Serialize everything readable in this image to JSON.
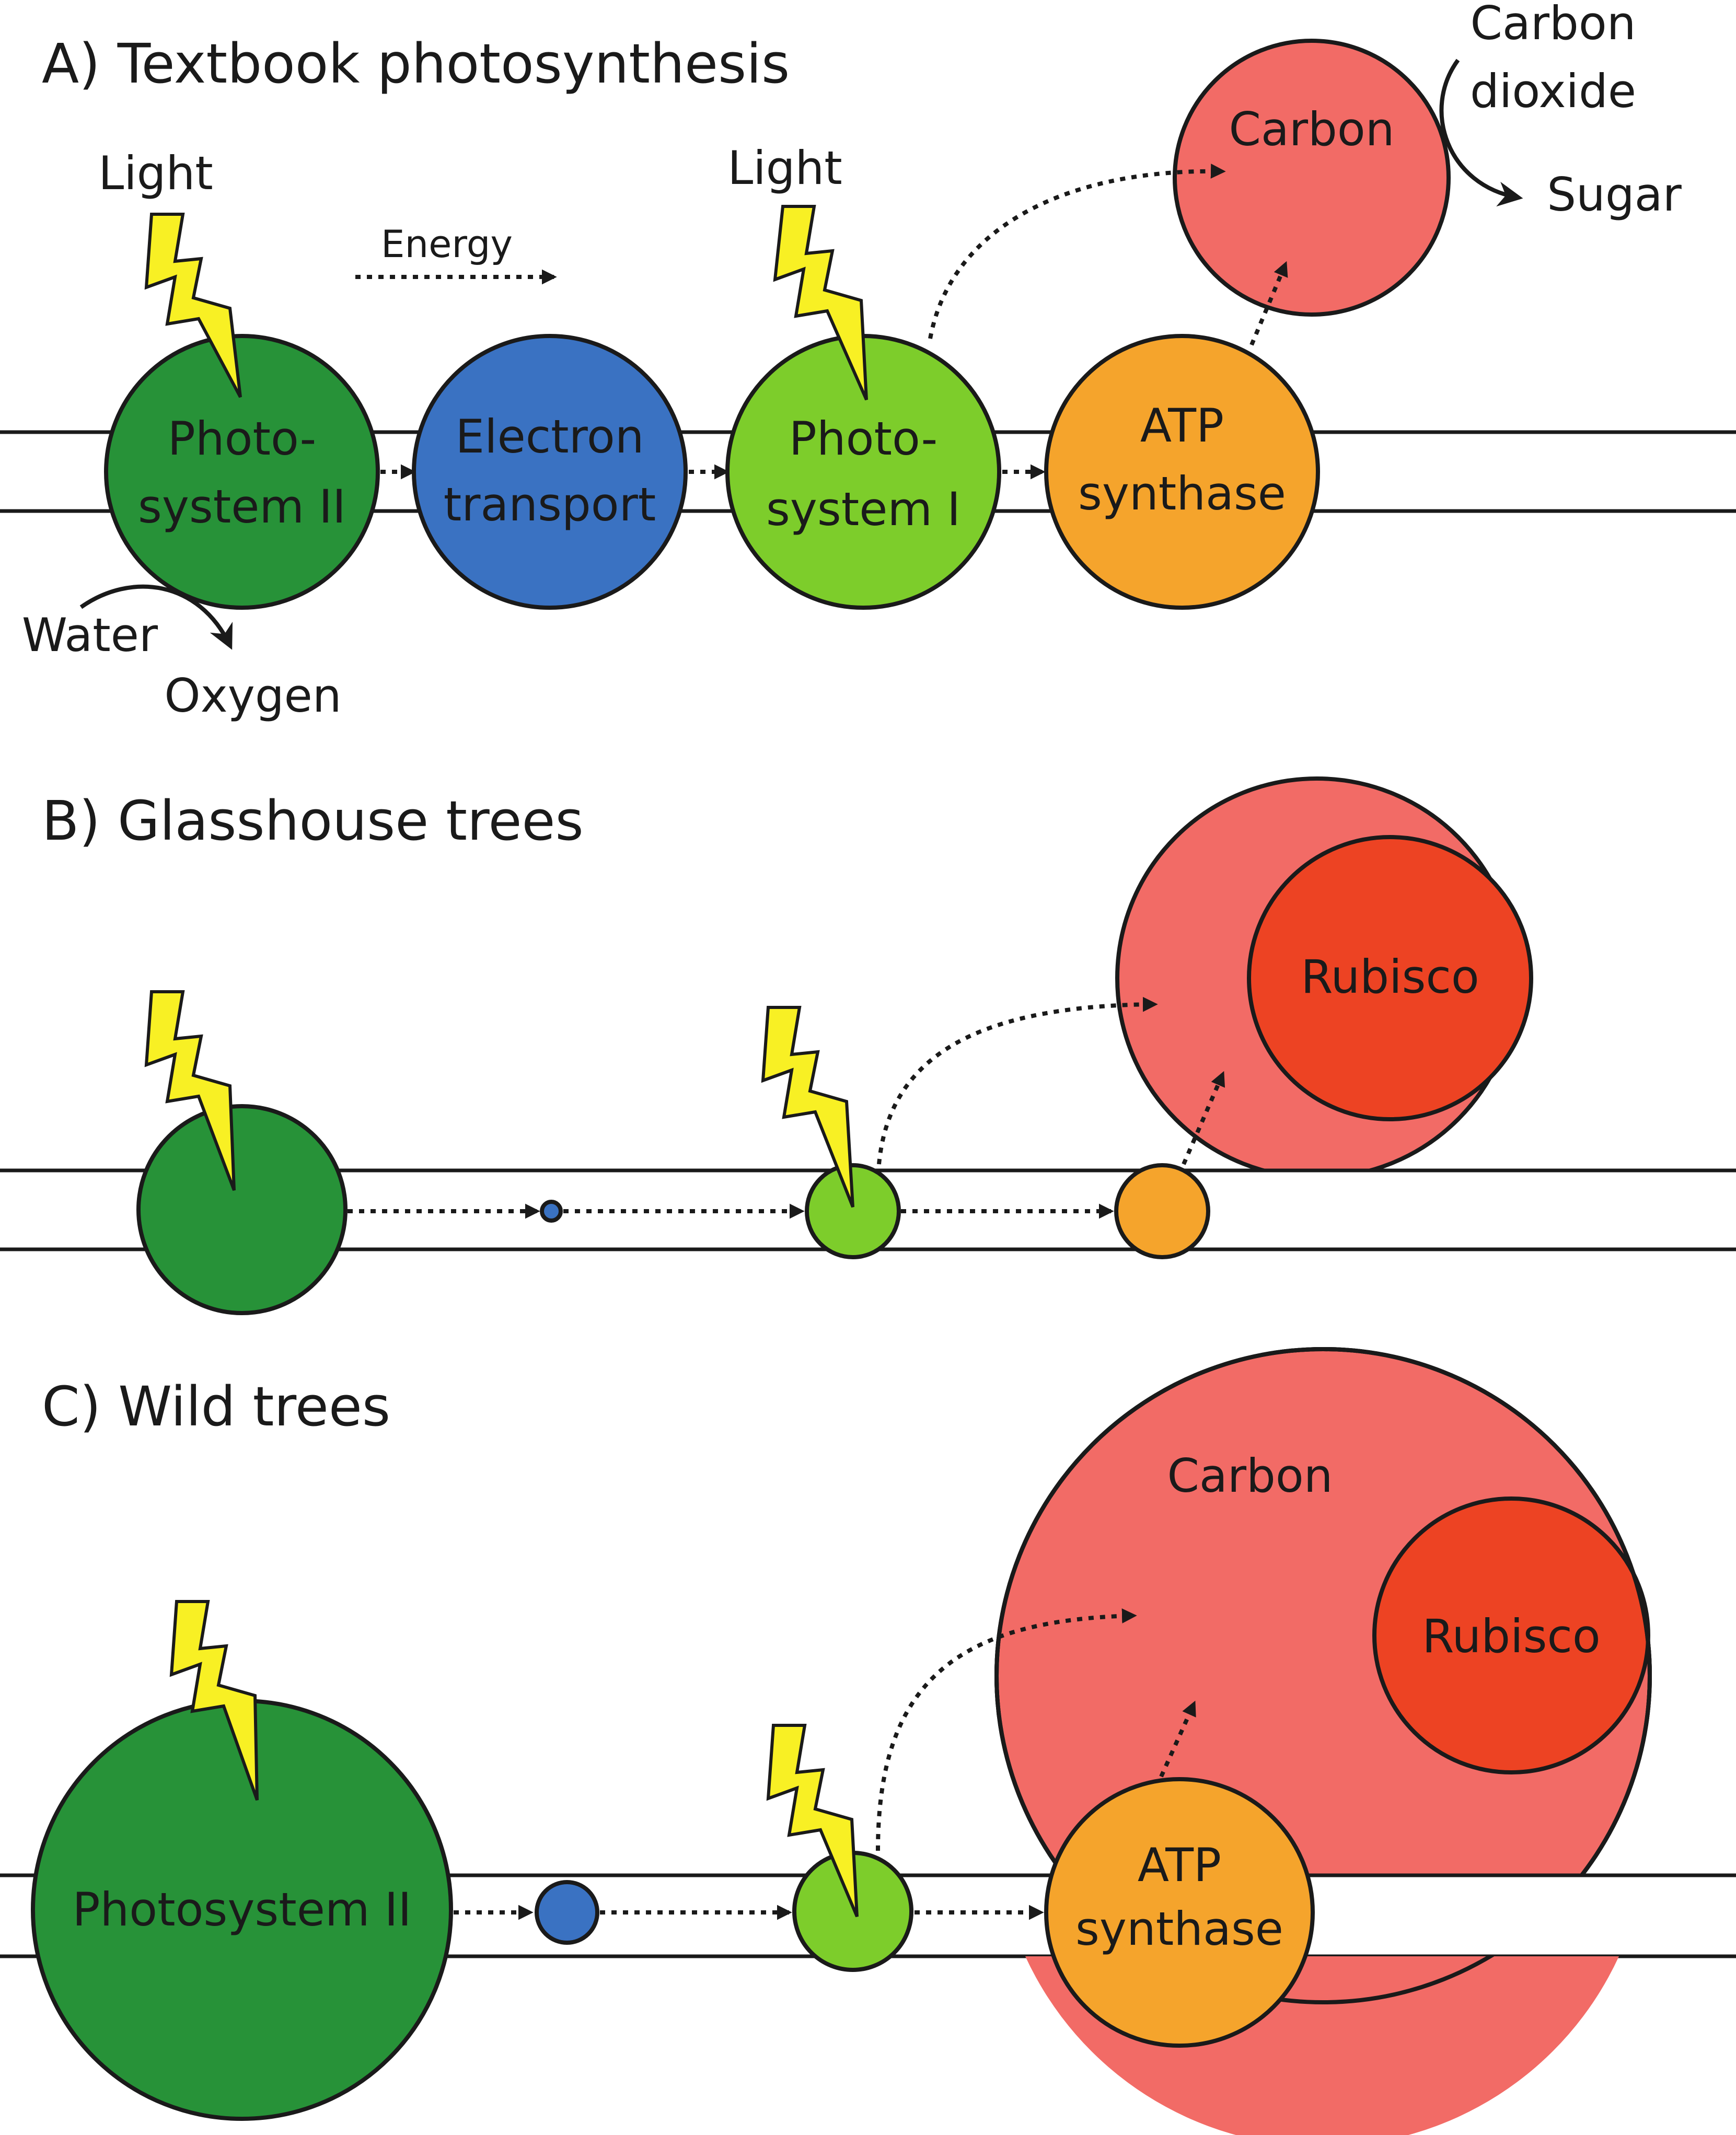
{
  "colors": {
    "photosystem_ii": "#279238",
    "electron_transport": "#3a72c2",
    "photosystem_i": "#7dcd2b",
    "atp_synthase": "#f5a42c",
    "carbon": "#f26b66",
    "rubisco": "#ed4323",
    "light": "#f8f024"
  },
  "icons": {
    "light": "lightning-bolt-icon"
  },
  "panel_a": {
    "title": "A) Textbook photosynthesis",
    "light_left": "Light",
    "light_right": "Light",
    "energy": "Energy",
    "water": "Water",
    "oxygen": "Oxygen",
    "psii_line1": "Photo-",
    "psii_line2": "system II",
    "et_line1": "Electron",
    "et_line2": "transport",
    "psi_line1": "Photo-",
    "psi_line2": "system I",
    "atp_line1": "ATP",
    "atp_line2": "synthase",
    "carbon": "Carbon",
    "co2_line1": "Carbon",
    "co2_line2": "dioxide",
    "sugar": "Sugar"
  },
  "panel_b": {
    "title": "B) Glasshouse trees",
    "rubisco": "Rubisco"
  },
  "panel_c": {
    "title": "C) Wild trees",
    "carbon": "Carbon",
    "rubisco": "Rubisco",
    "psii": "Photosystem II",
    "atp_line1": "ATP",
    "atp_line2": "synthase"
  }
}
